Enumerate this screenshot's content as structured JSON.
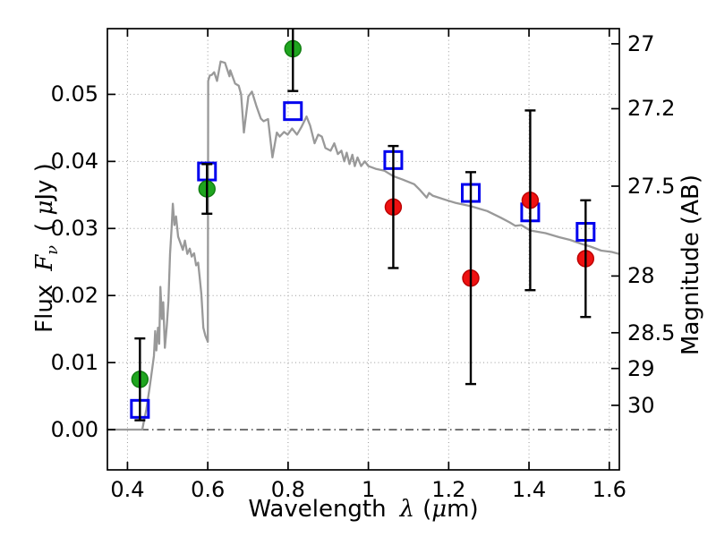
{
  "chart_data": {
    "type": "scatter+line",
    "title": "",
    "xlabel": "Wavelength λ (μm)",
    "xlabel_parts": {
      "name": "Wavelength",
      "symbol": "λ",
      "units_open": "(",
      "units_mu": "μ",
      "units_close": "m)"
    },
    "ylabel_left": "Flux Fν ( μJy )",
    "ylabel_left_parts": {
      "name": "Flux",
      "f": "F",
      "sub": "ν",
      "units_open": "( ",
      "mu": "μ",
      "units_close": "Jy )"
    },
    "ylabel_right": "Magnitude (AB)",
    "xlim": [
      0.35,
      1.625
    ],
    "ylim": [
      -0.006,
      0.0598
    ],
    "x_tick_labels": [
      "0.4",
      "0.6",
      "0.8",
      "1",
      "1.2",
      "1.4",
      "1.6"
    ],
    "x_tick_values": [
      0.4,
      0.6,
      0.8,
      1.0,
      1.2,
      1.4,
      1.6
    ],
    "y_left_tick_labels": [
      "0.00",
      "0.01",
      "0.02",
      "0.03",
      "0.04",
      "0.05"
    ],
    "y_left_tick_values": [
      0,
      0.01,
      0.02,
      0.03,
      0.04,
      0.05
    ],
    "y_right_tick_labels": [
      "27",
      "27.2",
      "27.5",
      "28",
      "28.5",
      "29",
      "30"
    ],
    "y_right_tick_flux": [
      0.05754,
      0.04786,
      0.03631,
      0.02291,
      0.01445,
      0.00912,
      0.00363
    ],
    "grid": "dotted at major ticks",
    "legend": "none",
    "zero_line_flux": 0,
    "colors": {
      "spectrum": "#999999",
      "green": "#1fa51f",
      "green_edge": "#107d10",
      "blue": "#0000ee",
      "red": "#ee1111",
      "red_edge": "#bb0000",
      "error": "#000000",
      "grid": "#999999",
      "zero_line": "#333333",
      "spine": "#000000"
    },
    "series": [
      {
        "name": "model spectrum",
        "type": "line",
        "color_key": "spectrum",
        "points": [
          [
            0.35,
            0.0
          ],
          [
            0.437,
            0.0
          ],
          [
            0.44,
            0.001
          ],
          [
            0.447,
            0.003
          ],
          [
            0.455,
            0.0062
          ],
          [
            0.462,
            0.0092
          ],
          [
            0.466,
            0.011
          ],
          [
            0.469,
            0.0147
          ],
          [
            0.472,
            0.0118
          ],
          [
            0.476,
            0.0152
          ],
          [
            0.479,
            0.0128
          ],
          [
            0.482,
            0.0213
          ],
          [
            0.486,
            0.0165
          ],
          [
            0.489,
            0.019
          ],
          [
            0.493,
            0.0122
          ],
          [
            0.498,
            0.0155
          ],
          [
            0.502,
            0.0192
          ],
          [
            0.506,
            0.0262
          ],
          [
            0.51,
            0.0302
          ],
          [
            0.513,
            0.0337
          ],
          [
            0.517,
            0.0305
          ],
          [
            0.521,
            0.0318
          ],
          [
            0.526,
            0.0288
          ],
          [
            0.532,
            0.0278
          ],
          [
            0.538,
            0.0268
          ],
          [
            0.543,
            0.0282
          ],
          [
            0.549,
            0.0262
          ],
          [
            0.555,
            0.027
          ],
          [
            0.56,
            0.0258
          ],
          [
            0.566,
            0.0263
          ],
          [
            0.571,
            0.0245
          ],
          [
            0.576,
            0.0249
          ],
          [
            0.58,
            0.0226
          ],
          [
            0.584,
            0.0202
          ],
          [
            0.589,
            0.0152
          ],
          [
            0.594,
            0.014
          ],
          [
            0.6,
            0.0131
          ],
          [
            0.601,
            0.052
          ],
          [
            0.605,
            0.0528
          ],
          [
            0.61,
            0.0529
          ],
          [
            0.616,
            0.0533
          ],
          [
            0.623,
            0.052
          ],
          [
            0.632,
            0.0549
          ],
          [
            0.643,
            0.0547
          ],
          [
            0.654,
            0.0527
          ],
          [
            0.656,
            0.0536
          ],
          [
            0.668,
            0.0516
          ],
          [
            0.677,
            0.0513
          ],
          [
            0.683,
            0.05
          ],
          [
            0.69,
            0.0443
          ],
          [
            0.701,
            0.0497
          ],
          [
            0.71,
            0.0504
          ],
          [
            0.721,
            0.0483
          ],
          [
            0.732,
            0.0464
          ],
          [
            0.739,
            0.046
          ],
          [
            0.75,
            0.0463
          ],
          [
            0.761,
            0.0406
          ],
          [
            0.772,
            0.0443
          ],
          [
            0.779,
            0.0437
          ],
          [
            0.79,
            0.0444
          ],
          [
            0.799,
            0.044
          ],
          [
            0.81,
            0.0449
          ],
          [
            0.822,
            0.044
          ],
          [
            0.833,
            0.0451
          ],
          [
            0.846,
            0.0467
          ],
          [
            0.855,
            0.0453
          ],
          [
            0.866,
            0.0427
          ],
          [
            0.875,
            0.044
          ],
          [
            0.884,
            0.0437
          ],
          [
            0.893,
            0.042
          ],
          [
            0.906,
            0.0416
          ],
          [
            0.915,
            0.0427
          ],
          [
            0.924,
            0.0411
          ],
          [
            0.933,
            0.0416
          ],
          [
            0.94,
            0.04
          ],
          [
            0.946,
            0.0413
          ],
          [
            0.953,
            0.0396
          ],
          [
            0.96,
            0.041
          ],
          [
            0.966,
            0.0393
          ],
          [
            0.973,
            0.0406
          ],
          [
            0.982,
            0.0393
          ],
          [
            0.991,
            0.04
          ],
          [
            1.0,
            0.0393
          ],
          [
            1.018,
            0.0389
          ],
          [
            1.04,
            0.0386
          ],
          [
            1.062,
            0.0378
          ],
          [
            1.085,
            0.0373
          ],
          [
            1.114,
            0.0366
          ],
          [
            1.129,
            0.0357
          ],
          [
            1.145,
            0.0346
          ],
          [
            1.151,
            0.0353
          ],
          [
            1.16,
            0.0349
          ],
          [
            1.196,
            0.0342
          ],
          [
            1.218,
            0.0338
          ],
          [
            1.256,
            0.0333
          ],
          [
            1.296,
            0.0326
          ],
          [
            1.33,
            0.0316
          ],
          [
            1.352,
            0.0309
          ],
          [
            1.366,
            0.0304
          ],
          [
            1.381,
            0.0305
          ],
          [
            1.403,
            0.0297
          ],
          [
            1.441,
            0.0293
          ],
          [
            1.475,
            0.0287
          ],
          [
            1.502,
            0.0283
          ],
          [
            1.531,
            0.0277
          ],
          [
            1.553,
            0.0273
          ],
          [
            1.58,
            0.0267
          ],
          [
            1.606,
            0.0265
          ],
          [
            1.624,
            0.0262
          ]
        ]
      },
      {
        "name": "observed photometry (green circles)",
        "type": "scatter",
        "marker": "circle-filled",
        "color_key": "green",
        "points": [
          {
            "x": 0.431,
            "y": 0.0075,
            "yerr": 0.0061
          },
          {
            "x": 0.598,
            "y": 0.0359,
            "yerr": 0.0037
          },
          {
            "x": 0.812,
            "y": 0.0568,
            "yerr": 0.0063
          }
        ]
      },
      {
        "name": "model photometry (blue open squares)",
        "type": "scatter",
        "marker": "square-open",
        "color_key": "blue",
        "points": [
          {
            "x": 0.431,
            "y": 0.0031
          },
          {
            "x": 0.598,
            "y": 0.0385
          },
          {
            "x": 0.812,
            "y": 0.0475
          },
          {
            "x": 1.062,
            "y": 0.0402
          },
          {
            "x": 1.255,
            "y": 0.0353
          },
          {
            "x": 1.403,
            "y": 0.0324
          },
          {
            "x": 1.541,
            "y": 0.0295
          }
        ]
      },
      {
        "name": "observed photometry (red circles)",
        "type": "scatter",
        "marker": "circle-filled",
        "color_key": "red",
        "points": [
          {
            "x": 1.062,
            "y": 0.0332,
            "yerr": 0.0091
          },
          {
            "x": 1.255,
            "y": 0.0226,
            "yerr": 0.0158
          },
          {
            "x": 1.403,
            "y": 0.0342,
            "yerr": 0.0134
          },
          {
            "x": 1.541,
            "y": 0.0255,
            "yerr": 0.0087
          }
        ]
      }
    ]
  }
}
